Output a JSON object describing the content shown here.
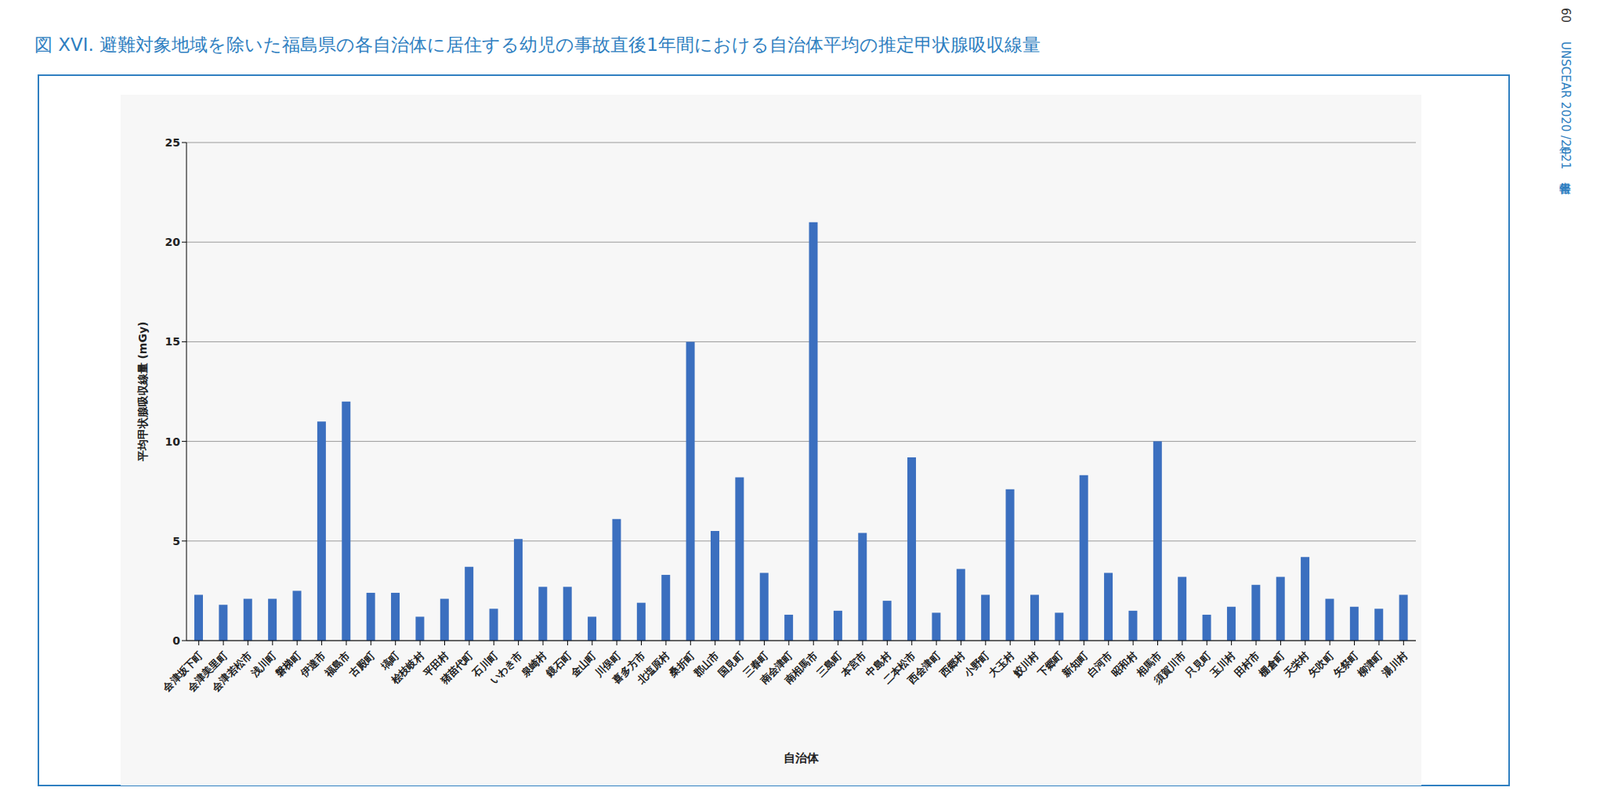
{
  "page": "60",
  "header": "UNSCEAR 2020 年/2021 年報告書",
  "chart_data": {
    "type": "bar",
    "title": "図 XVI. 避難対象地域を除いた福島県の各自治体に居住する幼児の事故直後1年間における自治体平均の推定甲状腺吸収線量",
    "x_label": "自治体",
    "y_label": "平均甲状腺吸収線量 (mGy)",
    "categories": [
      "会津坂下町",
      "会津美里町",
      "会津若松市",
      "浅川町",
      "磐梯町",
      "伊達市",
      "福島市",
      "古殿町",
      "塙町",
      "桧枝岐村",
      "平田村",
      "猪苗代町",
      "石川町",
      "いわき市",
      "泉崎村",
      "鏡石町",
      "金山町",
      "川俣町",
      "喜多方市",
      "北塩原村",
      "桑折町",
      "郡山市",
      "国見町",
      "三春町",
      "南会津町",
      "南相馬市",
      "三島町",
      "本宮市",
      "中島村",
      "二本松市",
      "西会津町",
      "西郷村",
      "小野町",
      "大玉村",
      "鮫川村",
      "下郷町",
      "新知町",
      "白河市",
      "昭和村",
      "相馬市",
      "須賀川市",
      "只見町",
      "玉川村",
      "田村市",
      "棚倉町",
      "天栄村",
      "矢吹町",
      "矢祭町",
      "柳津町",
      "湯川村"
    ],
    "values": [
      2.3,
      1.8,
      2.1,
      2.1,
      2.5,
      11,
      12,
      2.4,
      2.4,
      1.2,
      2.1,
      3.7,
      1.6,
      5.1,
      2.7,
      2.7,
      1.2,
      6.1,
      1.9,
      3.3,
      15,
      5.5,
      8.2,
      3.4,
      1.3,
      21,
      1.5,
      5.4,
      2.0,
      9.2,
      1.4,
      3.6,
      2.3,
      7.6,
      2.3,
      1.4,
      8.3,
      3.4,
      1.5,
      10,
      3.2,
      1.3,
      1.7,
      2.8,
      3.2,
      4.2,
      2.1,
      1.7,
      1.6,
      2.3
    ],
    "color": "#3b6fbf",
    "ylim": [
      0,
      25
    ],
    "yticks": [
      0,
      5,
      10,
      15,
      20,
      25
    ],
    "grid": true
  }
}
